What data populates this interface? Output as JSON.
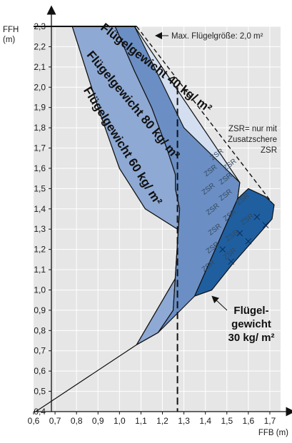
{
  "chart_data": {
    "type": "area",
    "title": "",
    "xlabel": "FFB (m)",
    "ylabel_line1": "FFH",
    "ylabel_line2": "(m)",
    "xlim": [
      0.6,
      1.75
    ],
    "ylim": [
      0.4,
      2.3
    ],
    "x_ticks": [
      "0,6",
      "0,7",
      "0,8",
      "0,9",
      "1,0",
      "1,1",
      "1,2",
      "1,3",
      "1,4",
      "1,5",
      "1,6",
      "1,7"
    ],
    "y_ticks": [
      "0,4",
      "0,5",
      "0,6",
      "0,7",
      "0,8",
      "0,9",
      "1,0",
      "1,1",
      "1,2",
      "1,3",
      "1,4",
      "1,5",
      "1,6",
      "1,7",
      "1,8",
      "1,9",
      "2,0",
      "2,1",
      "2,2",
      "2,3"
    ],
    "grid": true,
    "regions": [
      {
        "name": "Flügelgewicht 60 kg/ m²",
        "color": "#d3dff0",
        "points": [
          [
            0.61,
            0.4
          ],
          [
            1.08,
            0.73
          ],
          [
            1.35,
            1.22
          ],
          [
            1.27,
            1.3
          ],
          [
            1.12,
            1.4
          ],
          [
            1.0,
            1.6
          ],
          [
            0.9,
            1.9
          ],
          [
            0.84,
            2.1
          ],
          [
            0.78,
            2.3
          ],
          [
            1.07,
            2.3
          ],
          [
            1.56,
            1.53
          ],
          [
            1.55,
            1.45
          ],
          [
            1.35,
            0.97
          ],
          [
            1.22,
            0.87
          ],
          [
            1.18,
            0.79
          ],
          [
            1.08,
            0.73
          ],
          [
            0.61,
            0.4
          ]
        ]
      },
      {
        "name": "Flügelgewicht 80 kg/ m²",
        "color": "#8ea9d3",
        "points": [
          [
            0.78,
            2.3
          ],
          [
            0.84,
            2.1
          ],
          [
            0.9,
            1.9
          ],
          [
            1.0,
            1.6
          ],
          [
            1.12,
            1.4
          ],
          [
            1.27,
            1.3
          ],
          [
            1.35,
            1.22
          ],
          [
            1.08,
            0.73
          ],
          [
            1.18,
            0.79
          ],
          [
            1.25,
            0.9
          ],
          [
            1.28,
            1.4
          ],
          [
            1.26,
            1.5
          ],
          [
            1.26,
            1.57
          ],
          [
            1.22,
            1.7
          ],
          [
            1.15,
            1.9
          ],
          [
            1.07,
            2.08
          ],
          [
            0.98,
            2.3
          ]
        ]
      },
      {
        "name": "Flügelgewicht 40 kg/ m²",
        "color": "#6b8fc4",
        "points": [
          [
            0.98,
            2.3
          ],
          [
            1.07,
            2.08
          ],
          [
            1.15,
            1.9
          ],
          [
            1.22,
            1.7
          ],
          [
            1.26,
            1.57
          ],
          [
            1.26,
            1.5
          ],
          [
            1.28,
            1.4
          ],
          [
            1.25,
            0.9
          ],
          [
            1.18,
            0.79
          ],
          [
            1.35,
            0.97
          ],
          [
            1.55,
            1.45
          ],
          [
            1.56,
            1.53
          ],
          [
            1.3,
            1.8
          ],
          [
            1.07,
            2.3
          ]
        ]
      },
      {
        "name": "Flügelgewicht 30 kg/ m²",
        "color": "#1f5fa0",
        "points": [
          [
            1.35,
            0.97
          ],
          [
            1.55,
            1.45
          ],
          [
            1.6,
            1.5
          ],
          [
            1.68,
            1.46
          ],
          [
            1.72,
            1.42
          ],
          [
            1.71,
            1.35
          ],
          [
            1.52,
            1.12
          ],
          [
            1.43,
            1.0
          ],
          [
            1.35,
            0.97
          ]
        ]
      }
    ],
    "band_labels": [
      "Flügelgewicht 60 kg/ m²",
      "Flügelgewicht 80 kg/ m²",
      "Flügelgewicht 40 kg/ m²"
    ],
    "label_30": [
      "Flügel-",
      "gewicht",
      "30 kg/ m²"
    ],
    "annotation_max": "Max. Flügelgröße: 2,0 m²",
    "annotation_zsr": [
      "ZSR= nur mit",
      "Zusatzschere",
      "ZSR"
    ],
    "zsr_marker": "ZSR",
    "vertical_dashed_x": 1.27,
    "max_line": [
      [
        1.08,
        2.3
      ],
      [
        1.71,
        1.43
      ]
    ]
  }
}
